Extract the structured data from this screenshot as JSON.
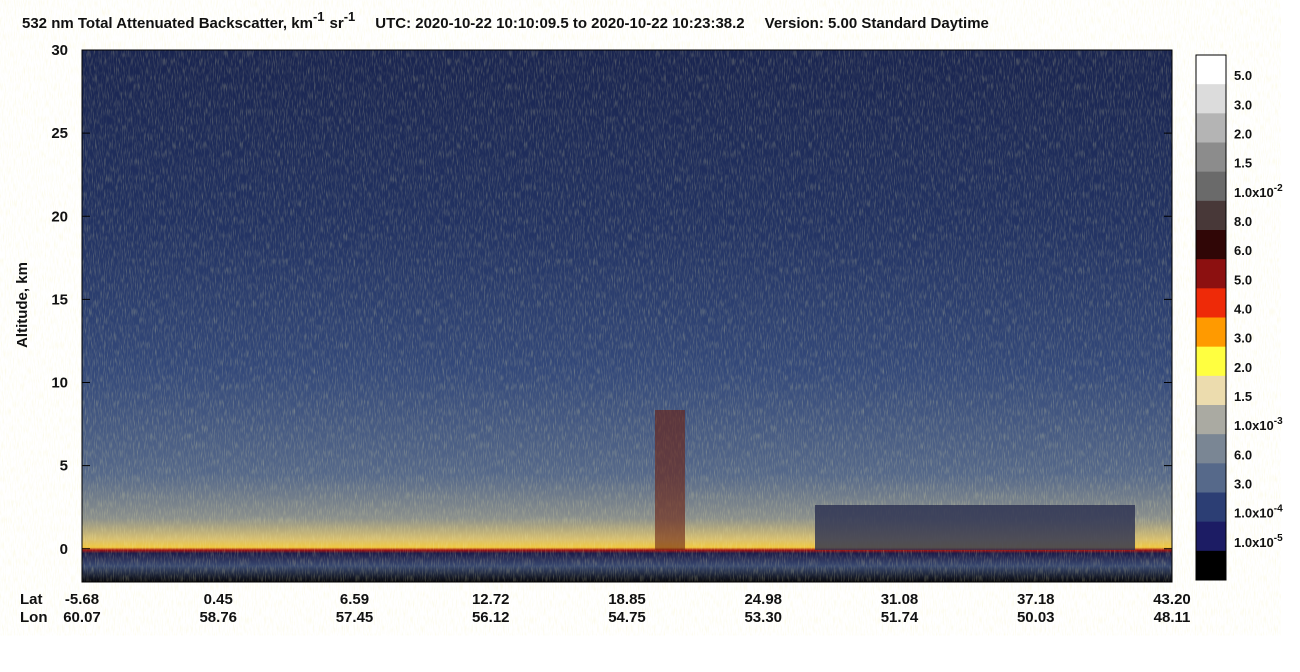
{
  "chart_data": {
    "type": "heatmap",
    "title": {
      "quantity": "532 nm Total Attenuated Backscatter, km",
      "exp1": "-1",
      "unit2": "sr",
      "exp2": "-1",
      "time": "UTC:  2020-10-22 10:10:09.5  to  2020-10-22 10:23:38.2",
      "version": "Version: 5.00  Standard  Daytime"
    },
    "y_label": "Altitude, km",
    "ylim": [
      -2,
      30
    ],
    "yticks": [
      0,
      5,
      10,
      15,
      20,
      25,
      30
    ],
    "x_rows": [
      {
        "name": "Lat",
        "labels": [
          "-5.68",
          "0.45",
          "6.59",
          "12.72",
          "18.85",
          "24.98",
          "31.08",
          "37.18",
          "43.20"
        ]
      },
      {
        "name": "Lon",
        "labels": [
          "60.07",
          "58.76",
          "57.45",
          "56.12",
          "54.75",
          "53.30",
          "51.74",
          "50.03",
          "48.11"
        ]
      }
    ],
    "colorbar": {
      "colors": [
        "#ffffff",
        "#dcdcdc",
        "#b4b4b4",
        "#8c8c8c",
        "#6a6a6a",
        "#483838",
        "#300606",
        "#8c1010",
        "#ee2a08",
        "#ff9a00",
        "#ffff40",
        "#ecdcae",
        "#aaaaa2",
        "#7a8694",
        "#56698a",
        "#2c3e74",
        "#1c1c64",
        "#000000"
      ],
      "labels": [
        {
          "text": "5.0"
        },
        {
          "text": "3.0"
        },
        {
          "text": "2.0"
        },
        {
          "text": "1.5"
        },
        {
          "text": "1.0x10",
          "sup": "-2"
        },
        {
          "text": "8.0"
        },
        {
          "text": "6.0"
        },
        {
          "text": "5.0"
        },
        {
          "text": "4.0"
        },
        {
          "text": "3.0"
        },
        {
          "text": "2.0"
        },
        {
          "text": "1.5"
        },
        {
          "text": "1.0x10",
          "sup": "-3"
        },
        {
          "text": "6.0"
        },
        {
          "text": "3.0"
        },
        {
          "text": "1.0x10",
          "sup": "-4"
        },
        {
          "text": "1.0x10",
          "sup": "-5"
        }
      ]
    }
  }
}
